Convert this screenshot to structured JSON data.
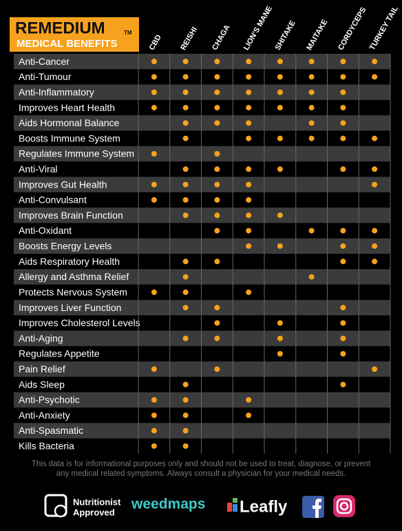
{
  "header": {
    "brand": "REMEDIUM",
    "trademark": "TM",
    "subtitle": "MEDICAL BENEFITS"
  },
  "table": {
    "columns": [
      "CBD",
      "REISHI",
      "CHAGA",
      "LION'S MANE",
      "SHITAKE",
      "MAITAKE",
      "CORDYCEPS",
      "TURKEY TAIL"
    ],
    "rows": [
      {
        "label": "Anti-Cancer",
        "marks": [
          true,
          true,
          true,
          true,
          true,
          true,
          true,
          true
        ]
      },
      {
        "label": "Anti-Tumour",
        "marks": [
          true,
          true,
          true,
          true,
          true,
          true,
          true,
          true
        ]
      },
      {
        "label": "Anti-Inflammatory",
        "marks": [
          true,
          true,
          true,
          true,
          true,
          true,
          true,
          false
        ]
      },
      {
        "label": "Improves Heart Health",
        "marks": [
          true,
          true,
          true,
          true,
          true,
          true,
          true,
          false
        ]
      },
      {
        "label": "Aids Hormonal Balance",
        "marks": [
          false,
          true,
          true,
          true,
          false,
          true,
          true,
          false
        ]
      },
      {
        "label": "Boosts Immune System",
        "marks": [
          false,
          true,
          false,
          true,
          true,
          true,
          true,
          true
        ]
      },
      {
        "label": "Regulates Immune System",
        "marks": [
          true,
          false,
          true,
          false,
          false,
          false,
          false,
          false
        ]
      },
      {
        "label": "Anti-Viral",
        "marks": [
          false,
          true,
          true,
          true,
          true,
          false,
          true,
          true
        ]
      },
      {
        "label": "Improves Gut Health",
        "marks": [
          true,
          true,
          true,
          true,
          false,
          false,
          false,
          true
        ]
      },
      {
        "label": "Anti-Convulsant",
        "marks": [
          true,
          true,
          true,
          true,
          false,
          false,
          false,
          false
        ]
      },
      {
        "label": "Improves Brain Function",
        "marks": [
          false,
          true,
          true,
          true,
          true,
          false,
          false,
          false
        ]
      },
      {
        "label": "Anti-Oxidant",
        "marks": [
          false,
          false,
          true,
          true,
          false,
          true,
          true,
          true
        ]
      },
      {
        "label": "Boosts Energy Levels",
        "marks": [
          false,
          false,
          false,
          true,
          true,
          false,
          true,
          true
        ]
      },
      {
        "label": "Aids Respiratory Health",
        "marks": [
          false,
          true,
          true,
          false,
          false,
          false,
          true,
          true
        ]
      },
      {
        "label": "Allergy and Asthma Relief",
        "marks": [
          false,
          true,
          false,
          false,
          false,
          true,
          false,
          false
        ]
      },
      {
        "label": "Protects Nervous System",
        "marks": [
          true,
          true,
          false,
          true,
          false,
          false,
          false,
          false
        ]
      },
      {
        "label": "Improves Liver Function",
        "marks": [
          false,
          true,
          true,
          false,
          false,
          false,
          true,
          false
        ]
      },
      {
        "label": "Improves Cholesterol Levels",
        "marks": [
          false,
          false,
          true,
          false,
          true,
          false,
          true,
          false
        ]
      },
      {
        "label": "Anti-Aging",
        "marks": [
          false,
          true,
          true,
          false,
          true,
          false,
          true,
          false
        ]
      },
      {
        "label": "Regulates Appetite",
        "marks": [
          false,
          false,
          false,
          false,
          true,
          false,
          true,
          false
        ]
      },
      {
        "label": "Pain Relief",
        "marks": [
          true,
          false,
          true,
          false,
          false,
          false,
          false,
          true
        ]
      },
      {
        "label": "Aids Sleep",
        "marks": [
          false,
          true,
          false,
          false,
          false,
          false,
          true,
          false
        ]
      },
      {
        "label": "Anti-Psychotic",
        "marks": [
          true,
          true,
          false,
          true,
          false,
          false,
          false,
          false
        ]
      },
      {
        "label": "Anti-Anxiety",
        "marks": [
          true,
          true,
          false,
          true,
          false,
          false,
          false,
          false
        ]
      },
      {
        "label": "Anti-Spasmatic",
        "marks": [
          true,
          true,
          false,
          false,
          false,
          false,
          false,
          false
        ]
      },
      {
        "label": "Kills Bacteria",
        "marks": [
          true,
          true,
          false,
          false,
          false,
          false,
          false,
          false
        ]
      }
    ]
  },
  "footer": {
    "disclaimer_line1": "This data is for informational purposes only and should not be used to treat, diagnose, or prevent",
    "disclaimer_line2": "any medical related symptoms. Always consult a physician for your medical needs.",
    "badge_line1": "Nutritionist",
    "badge_line2": "Approved",
    "weedmaps": "weedmaps",
    "leafly": "Leafly"
  }
}
